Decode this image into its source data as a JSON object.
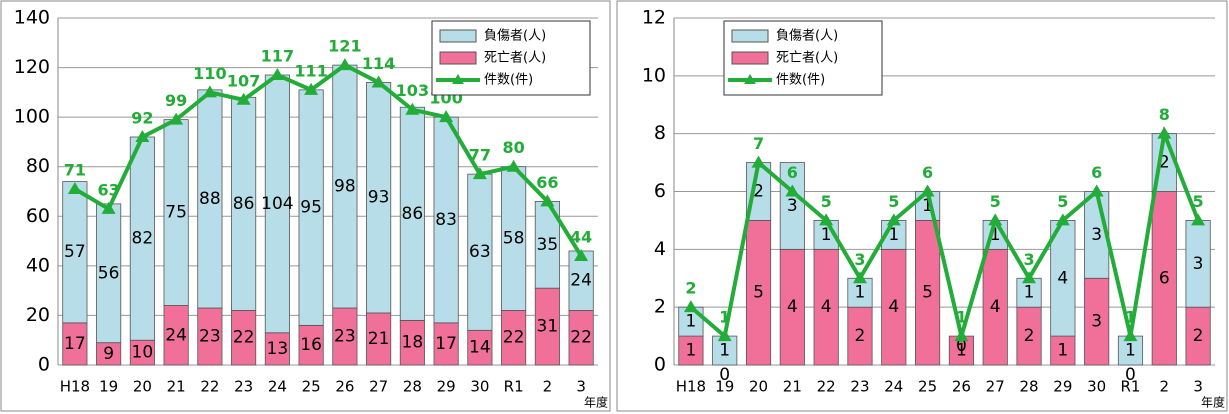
{
  "chart_data": [
    {
      "type": "combo",
      "x_label": "年度",
      "categories": [
        "H18",
        "19",
        "20",
        "21",
        "22",
        "23",
        "24",
        "25",
        "26",
        "27",
        "28",
        "29",
        "30",
        "R1",
        "2",
        "3"
      ],
      "ylim": [
        0,
        140
      ],
      "yticks": [
        0,
        20,
        40,
        60,
        80,
        100,
        120,
        140
      ],
      "grid": true,
      "legend": "top-right",
      "series": [
        {
          "name": "負傷者(人)",
          "type": "bar",
          "color": "#b7dee8",
          "values": [
            57,
            56,
            82,
            75,
            88,
            86,
            104,
            95,
            98,
            93,
            86,
            83,
            63,
            58,
            35,
            24
          ]
        },
        {
          "name": "死亡者(人)",
          "type": "bar",
          "color": "#f0709a",
          "values": [
            17,
            9,
            10,
            24,
            23,
            22,
            13,
            16,
            23,
            21,
            18,
            17,
            14,
            22,
            31,
            22
          ]
        },
        {
          "name": "件数(件)",
          "type": "line",
          "color": "#22ac38",
          "values": [
            71,
            63,
            92,
            99,
            110,
            107,
            117,
            111,
            121,
            114,
            103,
            100,
            77,
            80,
            66,
            44
          ]
        }
      ]
    },
    {
      "type": "combo",
      "x_label": "年度",
      "categories": [
        "H18",
        "19",
        "20",
        "21",
        "22",
        "23",
        "24",
        "25",
        "26",
        "27",
        "28",
        "29",
        "30",
        "R1",
        "2",
        "3"
      ],
      "ylim": [
        0,
        12
      ],
      "yticks": [
        0,
        2,
        4,
        6,
        8,
        10,
        12
      ],
      "grid": true,
      "legend": "top-left",
      "series": [
        {
          "name": "負傷者(人)",
          "type": "bar",
          "color": "#b7dee8",
          "values": [
            1,
            1,
            2,
            3,
            1,
            1,
            1,
            1,
            0,
            1,
            1,
            4,
            3,
            1,
            2,
            3
          ]
        },
        {
          "name": "死亡者(人)",
          "type": "bar",
          "color": "#f0709a",
          "values": [
            1,
            0,
            5,
            4,
            4,
            2,
            4,
            5,
            1,
            4,
            2,
            1,
            3,
            0,
            6,
            2
          ]
        },
        {
          "name": "件数(件)",
          "type": "line",
          "color": "#22ac38",
          "values": [
            2,
            1,
            7,
            6,
            5,
            3,
            5,
            6,
            1,
            5,
            3,
            5,
            6,
            1,
            8,
            5
          ]
        }
      ]
    }
  ]
}
